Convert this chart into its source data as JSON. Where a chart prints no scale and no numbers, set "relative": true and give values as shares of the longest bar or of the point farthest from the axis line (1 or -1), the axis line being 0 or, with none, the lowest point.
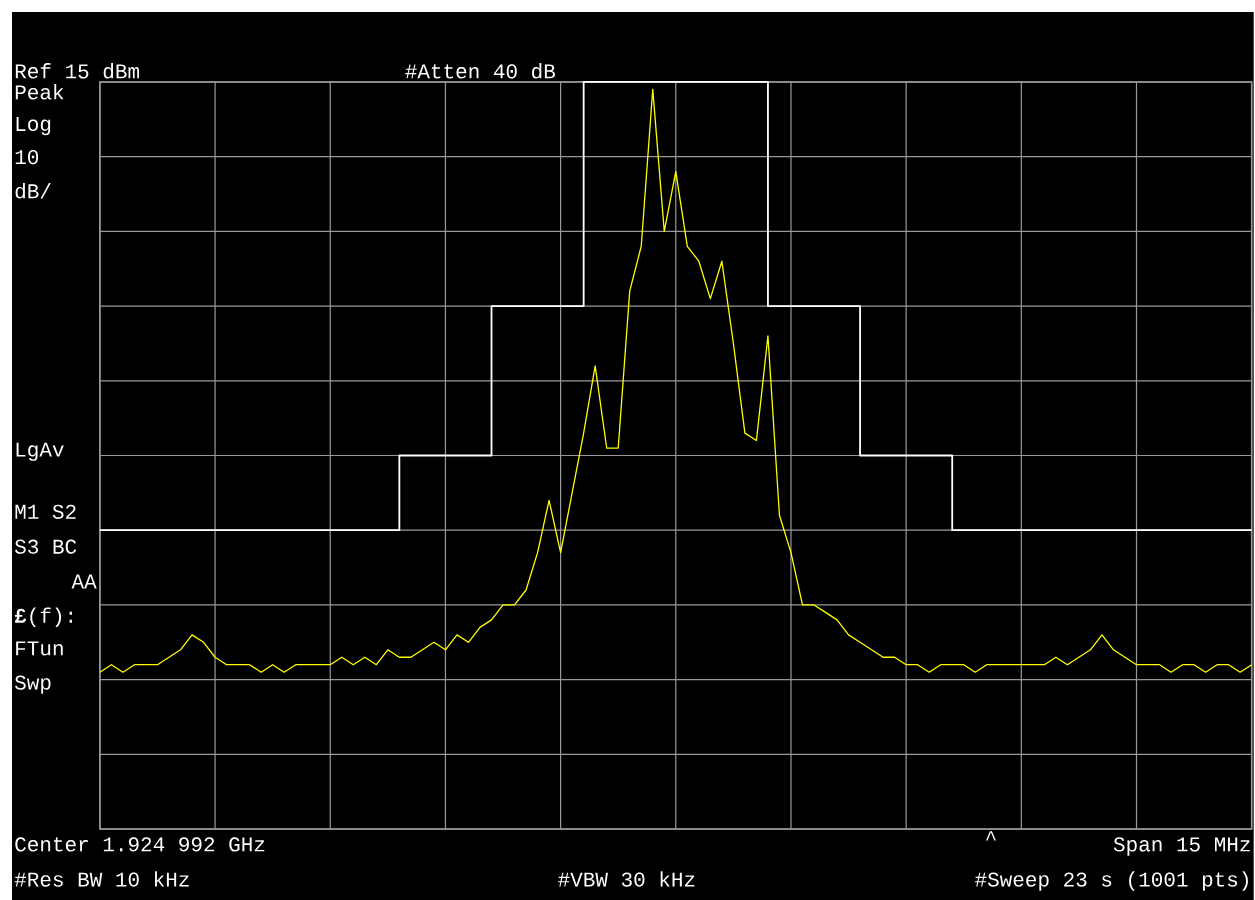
{
  "chart_data": {
    "type": "line",
    "relative": true,
    "grid": true,
    "categories": [
      null,
      null,
      null,
      null,
      null,
      null,
      null,
      null,
      null,
      null,
      null,
      null,
      null,
      null,
      null,
      null,
      null,
      null,
      null,
      null,
      null,
      null,
      null,
      null,
      null,
      null,
      null,
      null,
      null,
      null,
      null,
      null,
      null,
      null,
      null,
      null,
      null,
      null,
      null,
      null,
      null,
      null,
      null,
      null,
      null,
      null,
      null,
      null,
      null,
      null,
      null,
      null,
      null,
      null,
      null,
      null,
      null,
      null,
      null,
      null,
      null,
      null,
      null,
      null,
      null,
      null,
      null,
      null,
      null,
      null,
      null,
      null,
      null,
      null,
      null,
      null,
      null,
      null,
      null,
      null,
      null,
      null,
      null,
      null,
      null,
      null,
      null,
      null,
      null,
      null,
      null,
      null,
      null,
      null,
      null,
      null,
      null,
      null,
      null,
      null,
      null
    ],
    "series": [
      {
        "type": "step",
        "color": "#ffffff",
        "values": [
          0.4,
          0.4,
          0.4,
          0.4,
          0.4,
          0.4,
          0.4,
          0.4,
          0.4,
          0.4,
          0.4,
          0.4,
          0.4,
          0.4,
          0.4,
          0.4,
          0.4,
          0.4,
          0.4,
          0.4,
          0.4,
          0.4,
          0.4,
          0.4,
          0.4,
          0.4,
          0.5,
          0.5,
          0.5,
          0.5,
          0.5,
          0.5,
          0.5,
          0.5,
          0.7,
          0.7,
          0.7,
          0.7,
          0.7,
          0.7,
          0.7,
          0.7,
          1.0,
          1.0,
          1.0,
          1.0,
          1.0,
          1.0,
          1.0,
          1.0,
          1.0,
          1.0,
          1.0,
          1.0,
          1.0,
          1.0,
          1.0,
          1.0,
          0.7,
          0.7,
          0.7,
          0.7,
          0.7,
          0.7,
          0.7,
          0.7,
          0.5,
          0.5,
          0.5,
          0.5,
          0.5,
          0.5,
          0.5,
          0.5,
          0.4,
          0.4,
          0.4,
          0.4,
          0.4,
          0.4,
          0.4,
          0.4,
          0.4,
          0.4,
          0.4,
          0.4,
          0.4,
          0.4,
          0.4,
          0.4,
          0.4,
          0.4,
          0.4,
          0.4,
          0.4,
          0.4,
          0.4,
          0.4,
          0.4,
          0.4,
          0.4
        ]
      },
      {
        "color": "#ffff00",
        "values": [
          0.21,
          0.22,
          0.21,
          0.22,
          0.22,
          0.22,
          0.23,
          0.24,
          0.26,
          0.25,
          0.23,
          0.22,
          0.22,
          0.22,
          0.21,
          0.22,
          0.21,
          0.22,
          0.22,
          0.22,
          0.22,
          0.23,
          0.22,
          0.23,
          0.22,
          0.24,
          0.23,
          0.23,
          0.24,
          0.25,
          0.24,
          0.26,
          0.25,
          0.27,
          0.28,
          0.3,
          0.3,
          0.32,
          0.37,
          0.44,
          0.37,
          0.45,
          0.53,
          0.62,
          0.51,
          0.51,
          0.72,
          0.78,
          0.99,
          0.8,
          0.88,
          0.78,
          0.76,
          0.71,
          0.76,
          0.65,
          0.53,
          0.52,
          0.66,
          0.42,
          0.37,
          0.3,
          0.3,
          0.29,
          0.28,
          0.26,
          0.25,
          0.24,
          0.23,
          0.23,
          0.22,
          0.22,
          0.21,
          0.22,
          0.22,
          0.22,
          0.21,
          0.22,
          0.22,
          0.22,
          0.22,
          0.22,
          0.22,
          0.23,
          0.22,
          0.23,
          0.24,
          0.26,
          0.24,
          0.23,
          0.22,
          0.22,
          0.22,
          0.21,
          0.22,
          0.22,
          0.21,
          0.22,
          0.22,
          0.21,
          0.22
        ]
      }
    ],
    "annotations": [
      "Ref 15 dBm",
      "#Atten 40 dB",
      "Peak",
      "Log",
      "10",
      "dB/",
      "LgAv",
      "M1 S2",
      "S3 BC",
      "AA",
      "**£**(f):",
      "FTun",
      "Swp",
      "Center 1.924 992 GHz",
      "^",
      "Span 15 MHz",
      "#Res BW 10 kHz",
      "#VBW 30 kHz",
      "#Sweep 23 s (1001 pts)"
    ]
  }
}
